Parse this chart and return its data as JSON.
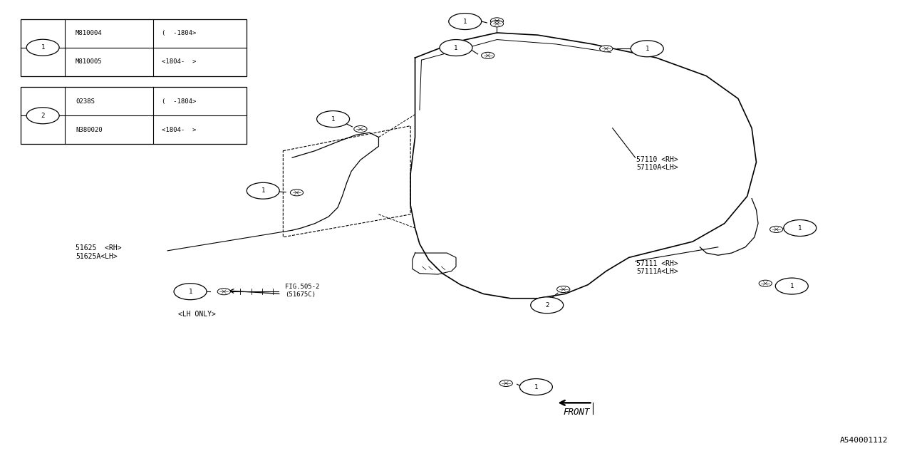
{
  "bg_color": "#ffffff",
  "line_color": "#000000",
  "fig_width": 12.8,
  "fig_height": 6.4,
  "diagram_id": "A540001112",
  "table1_rows": [
    {
      "part": "M810004",
      "note": "(  -1804>"
    },
    {
      "part": "M810005",
      "note": "<1804-  >"
    }
  ],
  "table2_rows": [
    {
      "part": "0238S",
      "note": "(  -1804>"
    },
    {
      "part": "N380020",
      "note": "<1804-  >"
    }
  ]
}
